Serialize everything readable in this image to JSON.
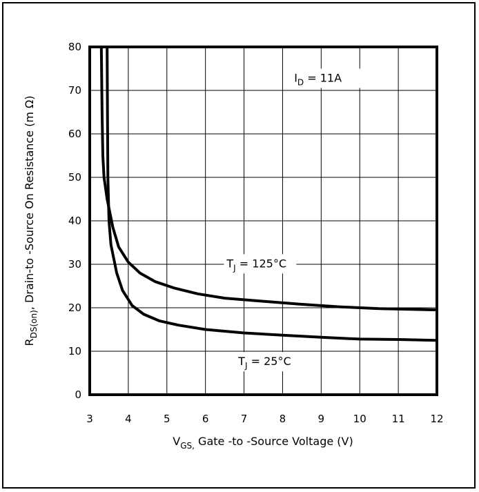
{
  "chart_data": {
    "type": "line",
    "xlim": [
      3,
      12
    ],
    "ylim": [
      0,
      80
    ],
    "xticks": [
      3,
      4,
      5,
      6,
      7,
      8,
      9,
      10,
      11,
      12
    ],
    "yticks": [
      0,
      10,
      20,
      30,
      40,
      50,
      60,
      70,
      80
    ],
    "grid": true,
    "xlabel": {
      "main": "V",
      "sub": "GS,",
      "rest": " Gate -to -Source Voltage  (V)"
    },
    "ylabel": {
      "main": "R",
      "sub": "DS(on)",
      "rest": ",  Drain-to -Source On Resistance (m Ω)"
    },
    "annotations": [
      {
        "main": "I",
        "sub": "D",
        "rest": " = 11A",
        "x": 8.3,
        "y": 72
      },
      {
        "main": "T",
        "sub": "J",
        "rest": " = 125°C",
        "x": 6.55,
        "y": 29.3
      },
      {
        "main": "T",
        "sub": "J",
        "rest": " = 25°C",
        "x": 6.85,
        "y": 6.8
      }
    ],
    "series": [
      {
        "label": "T_J = 125°C",
        "points": [
          [
            3.3,
            80
          ],
          [
            3.32,
            65
          ],
          [
            3.34,
            55
          ],
          [
            3.37,
            50
          ],
          [
            3.45,
            45
          ],
          [
            3.6,
            38.5
          ],
          [
            3.75,
            34
          ],
          [
            4.0,
            30.5
          ],
          [
            4.3,
            28
          ],
          [
            4.7,
            26
          ],
          [
            5.2,
            24.5
          ],
          [
            5.8,
            23.2
          ],
          [
            6.5,
            22.2
          ],
          [
            7.5,
            21.5
          ],
          [
            8.5,
            20.8
          ],
          [
            9.5,
            20.2
          ],
          [
            10.5,
            19.8
          ],
          [
            12,
            19.5
          ]
        ]
      },
      {
        "label": "T_J = 25°C",
        "points": [
          [
            3.45,
            80
          ],
          [
            3.46,
            65
          ],
          [
            3.47,
            50
          ],
          [
            3.5,
            40
          ],
          [
            3.55,
            34.5
          ],
          [
            3.7,
            28
          ],
          [
            3.85,
            24
          ],
          [
            4.1,
            20.5
          ],
          [
            4.4,
            18.5
          ],
          [
            4.8,
            17
          ],
          [
            5.3,
            16
          ],
          [
            6.0,
            15
          ],
          [
            7.0,
            14.2
          ],
          [
            8.0,
            13.7
          ],
          [
            9.0,
            13.2
          ],
          [
            10.0,
            12.8
          ],
          [
            11.0,
            12.7
          ],
          [
            12,
            12.5
          ]
        ]
      }
    ]
  }
}
